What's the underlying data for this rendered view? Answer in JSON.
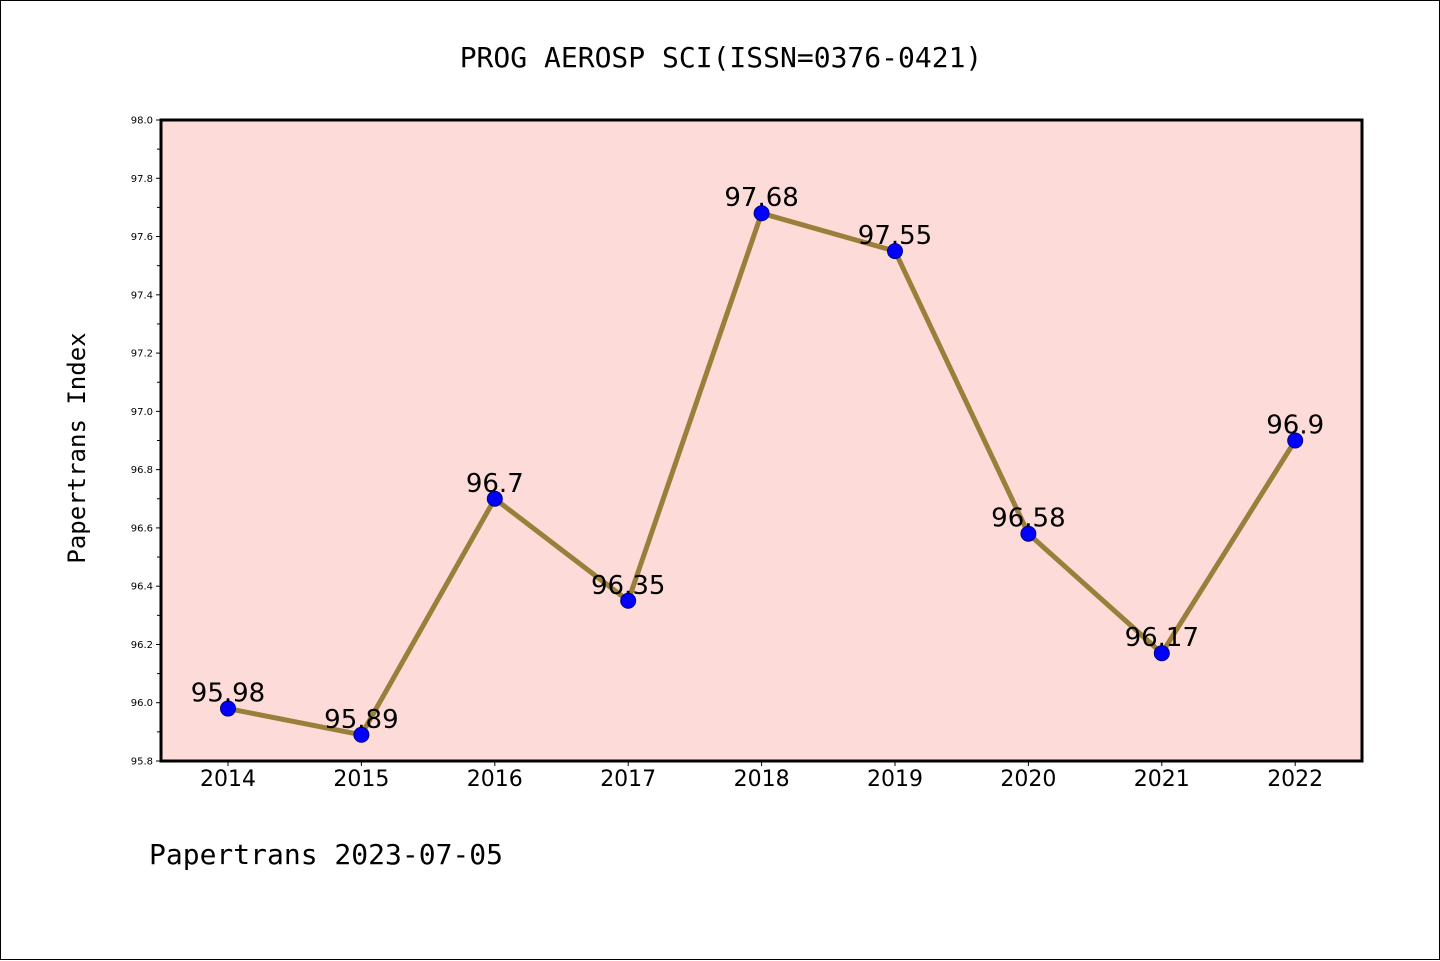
{
  "chart_data": {
    "type": "line",
    "title": "PROG AEROSP SCI(ISSN=0376-0421)",
    "ylabel": "Papertrans Index",
    "xlabel": "",
    "footer": "Papertrans 2023-07-05",
    "categories": [
      "2014",
      "2015",
      "2016",
      "2017",
      "2018",
      "2019",
      "2020",
      "2021",
      "2022"
    ],
    "values": [
      95.98,
      95.89,
      96.7,
      96.35,
      97.68,
      97.55,
      96.58,
      96.17,
      96.9
    ],
    "data_labels": [
      "95.98",
      "95.89",
      "96.7",
      "96.35",
      "97.68",
      "97.55",
      "96.58",
      "96.17",
      "96.9"
    ],
    "ylim": [
      95.8,
      98.0
    ],
    "yticks": [
      "95.8",
      "96.0",
      "96.2",
      "96.4",
      "96.6",
      "96.8",
      "97.0",
      "97.2",
      "97.4",
      "97.6",
      "97.8",
      "98.0"
    ],
    "grid": false,
    "colors": {
      "plot_background": "#fddbd9",
      "line": "#9a7f3a",
      "marker": "#0000ff",
      "marker_edge": "#000080",
      "axes": "#000000"
    }
  }
}
